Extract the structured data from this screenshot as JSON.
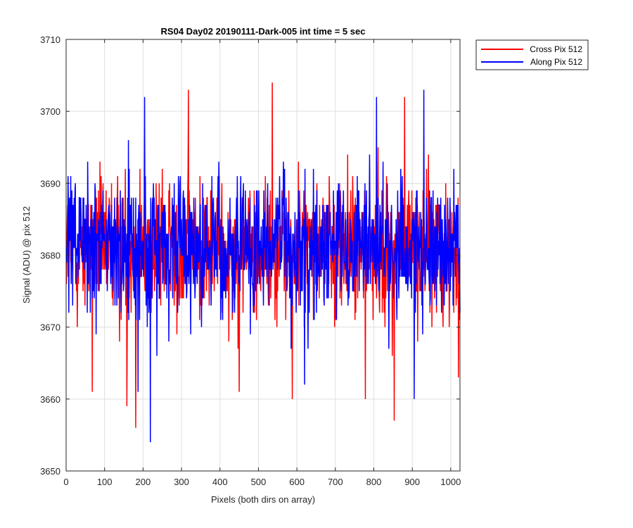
{
  "chart_data": {
    "type": "line",
    "title": "RS04 Day02 20190111-Dark-005 int time = 5 sec",
    "xlabel": "Pixels (both dirs on array)",
    "ylabel": "Signal (ADU) @ pix 512",
    "xlim": [
      0,
      1024
    ],
    "ylim": [
      3650,
      3710
    ],
    "xticks": [
      0,
      100,
      200,
      300,
      400,
      500,
      600,
      700,
      800,
      900,
      1000
    ],
    "yticks": [
      3650,
      3660,
      3670,
      3680,
      3690,
      3700,
      3710
    ],
    "grid": true,
    "legend_position": "outside-top-right",
    "series": [
      {
        "name": "Cross Pix 512",
        "color": "#ff0000",
        "x_range": [
          1,
          1024
        ],
        "approx_mean": 3681,
        "approx_std": 6,
        "highlights": [
          {
            "x": 68,
            "y": 3661
          },
          {
            "x": 158,
            "y": 3659
          },
          {
            "x": 181,
            "y": 3656
          },
          {
            "x": 318,
            "y": 3703
          },
          {
            "x": 450,
            "y": 3661
          },
          {
            "x": 536,
            "y": 3704
          },
          {
            "x": 588,
            "y": 3660
          },
          {
            "x": 778,
            "y": 3660
          },
          {
            "x": 853,
            "y": 3657
          },
          {
            "x": 880,
            "y": 3702
          },
          {
            "x": 1020,
            "y": 3663
          }
        ]
      },
      {
        "name": "Along Pix 512",
        "color": "#0000ff",
        "x_range": [
          1,
          1024
        ],
        "approx_mean": 3681,
        "approx_std": 6,
        "highlights": [
          {
            "x": 204,
            "y": 3702
          },
          {
            "x": 219,
            "y": 3654
          },
          {
            "x": 187,
            "y": 3661
          },
          {
            "x": 620,
            "y": 3662
          },
          {
            "x": 807,
            "y": 3702
          },
          {
            "x": 930,
            "y": 3703
          },
          {
            "x": 905,
            "y": 3660
          }
        ]
      }
    ]
  }
}
